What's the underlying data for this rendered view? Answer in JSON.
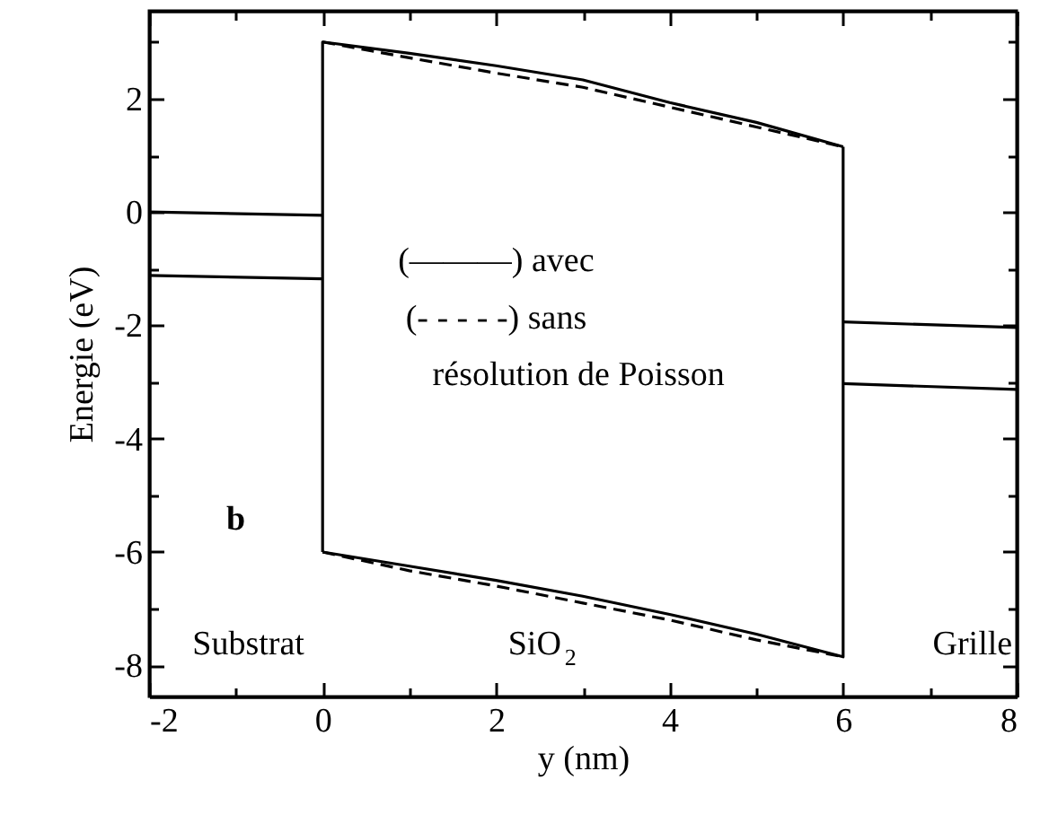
{
  "chart_data": {
    "type": "line",
    "xlabel": "y (nm)",
    "ylabel": "Energie (eV)",
    "xlim": [
      -2,
      8
    ],
    "ylim": [
      -8.55,
      3.55
    ],
    "xticks": [
      -2,
      {
        "value": -1,
        "label": null
      },
      0,
      {
        "value": 1,
        "label": null
      },
      2,
      {
        "value": 3,
        "label": null
      },
      4,
      {
        "value": 5,
        "label": null
      },
      6,
      {
        "value": 7,
        "label": null
      },
      8
    ],
    "yticks": [
      -8,
      {
        "value": -7,
        "label": null
      },
      -6,
      {
        "value": -5,
        "label": null
      },
      -4,
      {
        "value": -3,
        "label": null
      },
      -2,
      {
        "value": -1,
        "label": null
      },
      0,
      {
        "value": 1,
        "label": null
      },
      2,
      {
        "value": 3,
        "label": null
      }
    ],
    "grid": false,
    "marker": "none",
    "series": [
      {
        "color": "#000000",
        "line_style": "solid",
        "x": [
          -2,
          0
        ],
        "values": [
          0,
          -0.06
        ]
      },
      {
        "color": "#000000",
        "line_style": "solid",
        "x": [
          -2,
          0
        ],
        "values": [
          -1.12,
          -1.18
        ]
      },
      {
        "color": "#000000",
        "line_style": "solid",
        "x": [
          0,
          0,
          1,
          2,
          3,
          4,
          5,
          6
        ],
        "values": [
          -6.0,
          3.0,
          2.8,
          2.58,
          2.33,
          1.93,
          1.58,
          1.15
        ]
      },
      {
        "color": "#000000",
        "line_style": "solid",
        "x": [
          0,
          1,
          2,
          3,
          4,
          5,
          6,
          6
        ],
        "values": [
          -6.0,
          -6.25,
          -6.5,
          -6.78,
          -7.1,
          -7.45,
          -7.85,
          1.15
        ]
      },
      {
        "color": "#000000",
        "line_style": "dashed",
        "x": [
          0,
          1,
          2,
          3,
          4,
          5,
          6
        ],
        "values": [
          3.0,
          2.72,
          2.45,
          2.2,
          1.85,
          1.5,
          1.15
        ]
      },
      {
        "color": "#000000",
        "line_style": "dashed",
        "x": [
          0,
          1,
          2,
          3,
          4,
          5,
          6
        ],
        "values": [
          -6.0,
          -6.33,
          -6.6,
          -6.9,
          -7.2,
          -7.55,
          -7.85
        ]
      },
      {
        "color": "#000000",
        "line_style": "solid",
        "x": [
          6,
          8
        ],
        "values": [
          -1.94,
          -2.04
        ]
      },
      {
        "color": "#000000",
        "line_style": "solid",
        "x": [
          6,
          8
        ],
        "values": [
          -3.03,
          -3.13
        ]
      }
    ],
    "annotations": [
      "(———) avec",
      "(- - - - -) sans",
      "résolution de Poisson",
      "b",
      "Substrat",
      "SiO$_{2}$",
      "Grille"
    ]
  }
}
